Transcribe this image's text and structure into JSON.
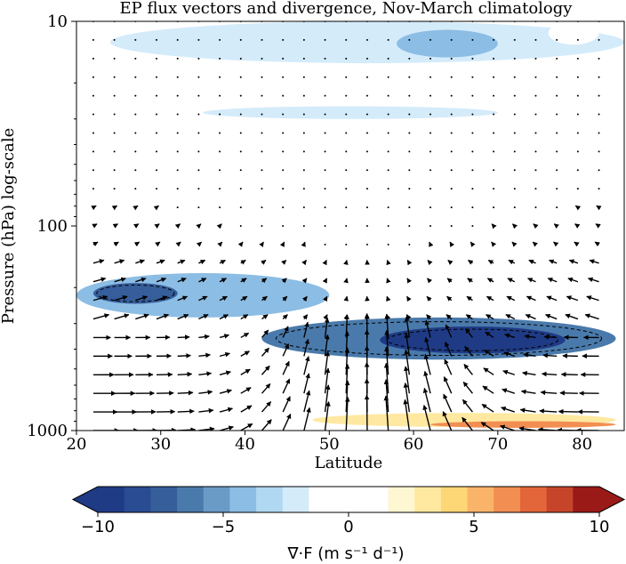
{
  "chart_data": [
    {
      "type": "heatmap",
      "title": "EP flux vectors and divergence, Nov-March climatology",
      "xlabel": "Latitude",
      "ylabel": "Pressure (hPa) log-scale",
      "xlim": [
        20,
        85
      ],
      "ylim": [
        1000,
        10
      ],
      "yscale": "log",
      "x_ticks": [
        "20",
        "30",
        "40",
        "50",
        "60",
        "70",
        "80"
      ],
      "y_ticks": [
        "10",
        "100",
        "1000"
      ],
      "grid": false,
      "overlay": "EP flux vectors (quiver), dashed contours of convergence",
      "regions": [
        {
          "lat": [
            24,
            85
          ],
          "p": [
            10,
            16
          ],
          "value": -2.5
        },
        {
          "lat": [
            58,
            70
          ],
          "p": [
            11,
            15
          ],
          "value": -4.5
        },
        {
          "lat": [
            76,
            82
          ],
          "p": [
            10,
            13
          ],
          "value": 1.5
        },
        {
          "lat": [
            50,
            76
          ],
          "p": [
            16,
            24
          ],
          "value": -1.5
        },
        {
          "lat": [
            35,
            70
          ],
          "p": [
            26,
            30
          ],
          "value": -2
        },
        {
          "lat": [
            20,
            50
          ],
          "p": [
            170,
            280
          ],
          "value": -4
        },
        {
          "lat": [
            22,
            32
          ],
          "p": [
            190,
            240
          ],
          "value": -7
        },
        {
          "lat": [
            42,
            84
          ],
          "p": [
            280,
            450
          ],
          "value": -6
        },
        {
          "lat": [
            56,
            78
          ],
          "p": [
            310,
            420
          ],
          "value": -9
        },
        {
          "lat": [
            30,
            50
          ],
          "p": [
            450,
            650
          ],
          "value": 1.5
        },
        {
          "lat": [
            48,
            84
          ],
          "p": [
            820,
            960
          ],
          "value": 3.5
        },
        {
          "lat": [
            62,
            84
          ],
          "p": [
            900,
            970
          ],
          "value": 6
        }
      ]
    },
    {
      "type": "heatmap",
      "name": "colorbar",
      "xlabel": "∇·F (m s⁻¹ d⁻¹)",
      "range": [
        -10,
        10
      ],
      "ticks": [
        "−10",
        "−5",
        "0",
        "5",
        "10"
      ],
      "extend": "both",
      "colors": [
        "#1f3b86",
        "#2a4c92",
        "#365e9b",
        "#4a7aab",
        "#6a9bc7",
        "#8cbde4",
        "#b0d8f2",
        "#d4ebfa",
        "#ffffff",
        "#ffffff",
        "#ffffff",
        "#fff6d2",
        "#ffe8a0",
        "#fdd676",
        "#f9b46a",
        "#f28e52",
        "#e2663a",
        "#c6452a",
        "#9a1a18"
      ]
    }
  ]
}
